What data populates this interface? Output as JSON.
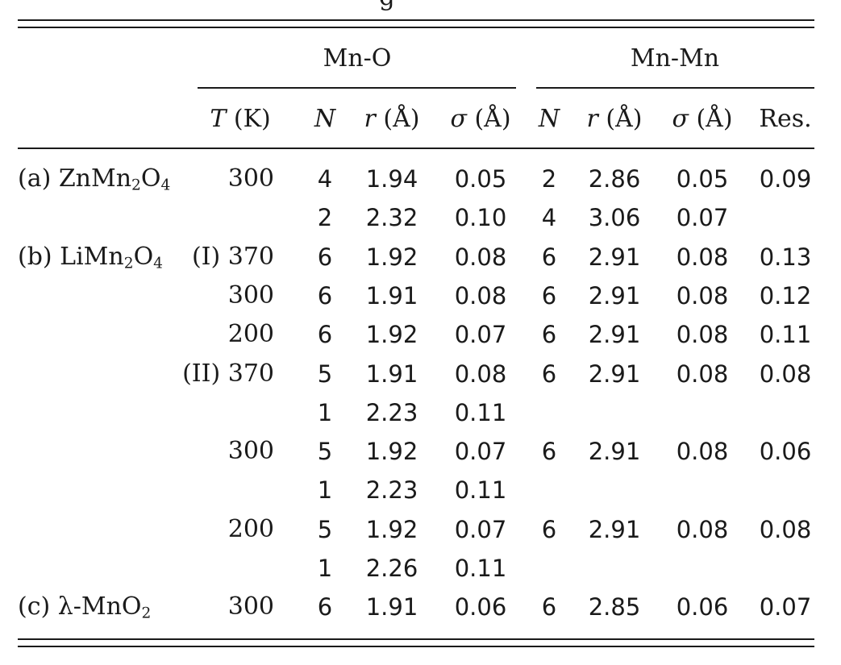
{
  "caption_fragment": "g",
  "groups": {
    "mno": "Mn-O",
    "mnmn": "Mn-Mn"
  },
  "headers": {
    "T": "T",
    "T_unit": " (K)",
    "N1": "N",
    "r1": "r",
    "r1_unit": " (Å)",
    "s1": "σ",
    "s1_unit": " (Å)",
    "N2": "N",
    "r2": "r",
    "r2_unit": " (Å)",
    "s2": "σ",
    "s2_unit": " (Å)",
    "res": "Res."
  },
  "samples": [
    {
      "prefix": "(a) ZnMn",
      "sub1": "2",
      "mid": "O",
      "sub2": "4"
    },
    {
      "prefix": "(b) LiMn",
      "sub1": "2",
      "mid": "O",
      "sub2": "4"
    },
    {
      "prefix": "(c) λ-MnO",
      "sub1": "2",
      "mid": "",
      "sub2": ""
    }
  ],
  "rows": [
    {
      "T": "300",
      "N1": "4",
      "r1": "1.94",
      "s1": "0.05",
      "N2": "2",
      "r2": "2.86",
      "s2": "0.05",
      "res": "0.09"
    },
    {
      "T": "",
      "N1": "2",
      "r1": "2.32",
      "s1": "0.10",
      "N2": "4",
      "r2": "3.06",
      "s2": "0.07",
      "res": ""
    },
    {
      "T": "(I) 370",
      "N1": "6",
      "r1": "1.92",
      "s1": "0.08",
      "N2": "6",
      "r2": "2.91",
      "s2": "0.08",
      "res": "0.13"
    },
    {
      "T": "300",
      "N1": "6",
      "r1": "1.91",
      "s1": "0.08",
      "N2": "6",
      "r2": "2.91",
      "s2": "0.08",
      "res": "0.12"
    },
    {
      "T": "200",
      "N1": "6",
      "r1": "1.92",
      "s1": "0.07",
      "N2": "6",
      "r2": "2.91",
      "s2": "0.08",
      "res": "0.11"
    },
    {
      "T": "(II) 370",
      "N1": "5",
      "r1": "1.91",
      "s1": "0.08",
      "N2": "6",
      "r2": "2.91",
      "s2": "0.08",
      "res": "0.08"
    },
    {
      "T": "",
      "N1": "1",
      "r1": "2.23",
      "s1": "0.11",
      "N2": "",
      "r2": "",
      "s2": "",
      "res": ""
    },
    {
      "T": "300",
      "N1": "5",
      "r1": "1.92",
      "s1": "0.07",
      "N2": "6",
      "r2": "2.91",
      "s2": "0.08",
      "res": "0.06"
    },
    {
      "T": "",
      "N1": "1",
      "r1": "2.23",
      "s1": "0.11",
      "N2": "",
      "r2": "",
      "s2": "",
      "res": ""
    },
    {
      "T": "200",
      "N1": "5",
      "r1": "1.92",
      "s1": "0.07",
      "N2": "6",
      "r2": "2.91",
      "s2": "0.08",
      "res": "0.08"
    },
    {
      "T": "",
      "N1": "1",
      "r1": "2.26",
      "s1": "0.11",
      "N2": "",
      "r2": "",
      "s2": "",
      "res": ""
    },
    {
      "T": "300",
      "N1": "6",
      "r1": "1.91",
      "s1": "0.06",
      "N2": "6",
      "r2": "2.85",
      "s2": "0.06",
      "res": "0.07"
    }
  ]
}
